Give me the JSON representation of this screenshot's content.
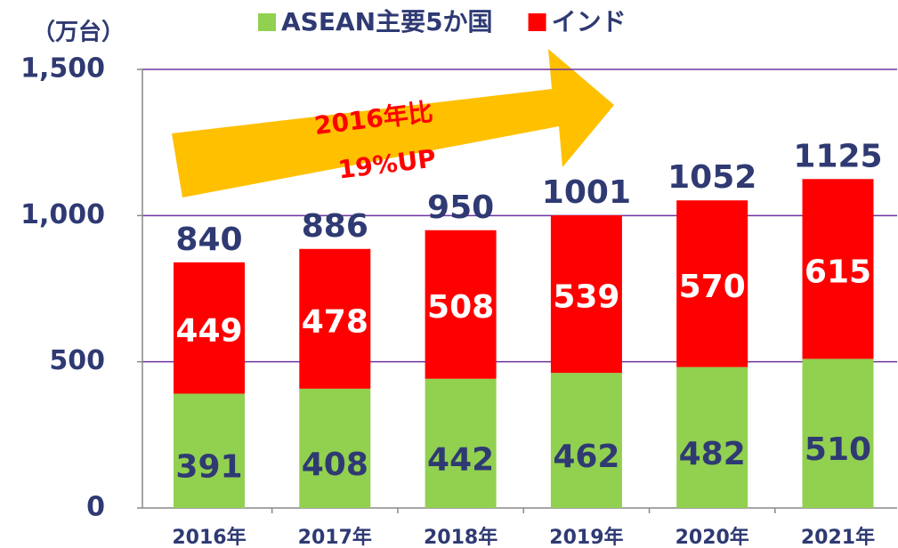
{
  "chart_data": {
    "type": "stacked_bar",
    "y_axis_label": "（万台）",
    "categories": [
      "2016年",
      "2017年",
      "2018年",
      "2019年",
      "2020年",
      "2021年"
    ],
    "series": [
      {
        "name": "ASEAN主要5か国",
        "color": "#92d050",
        "values": [
          391,
          408,
          442,
          462,
          482,
          510
        ]
      },
      {
        "name": "インド",
        "color": "#ff0000",
        "values": [
          449,
          478,
          508,
          539,
          570,
          615
        ]
      }
    ],
    "totals": [
      840,
      886,
      950,
      1001,
      1052,
      1125
    ],
    "ylim": [
      0,
      1500
    ],
    "yticks": [
      0,
      500,
      {
        "value": 1000,
        "label": "1,000"
      },
      {
        "value": 1500,
        "label": "1,500"
      }
    ],
    "grid": true,
    "annotations": [
      "2016年比",
      "19%UP"
    ]
  }
}
